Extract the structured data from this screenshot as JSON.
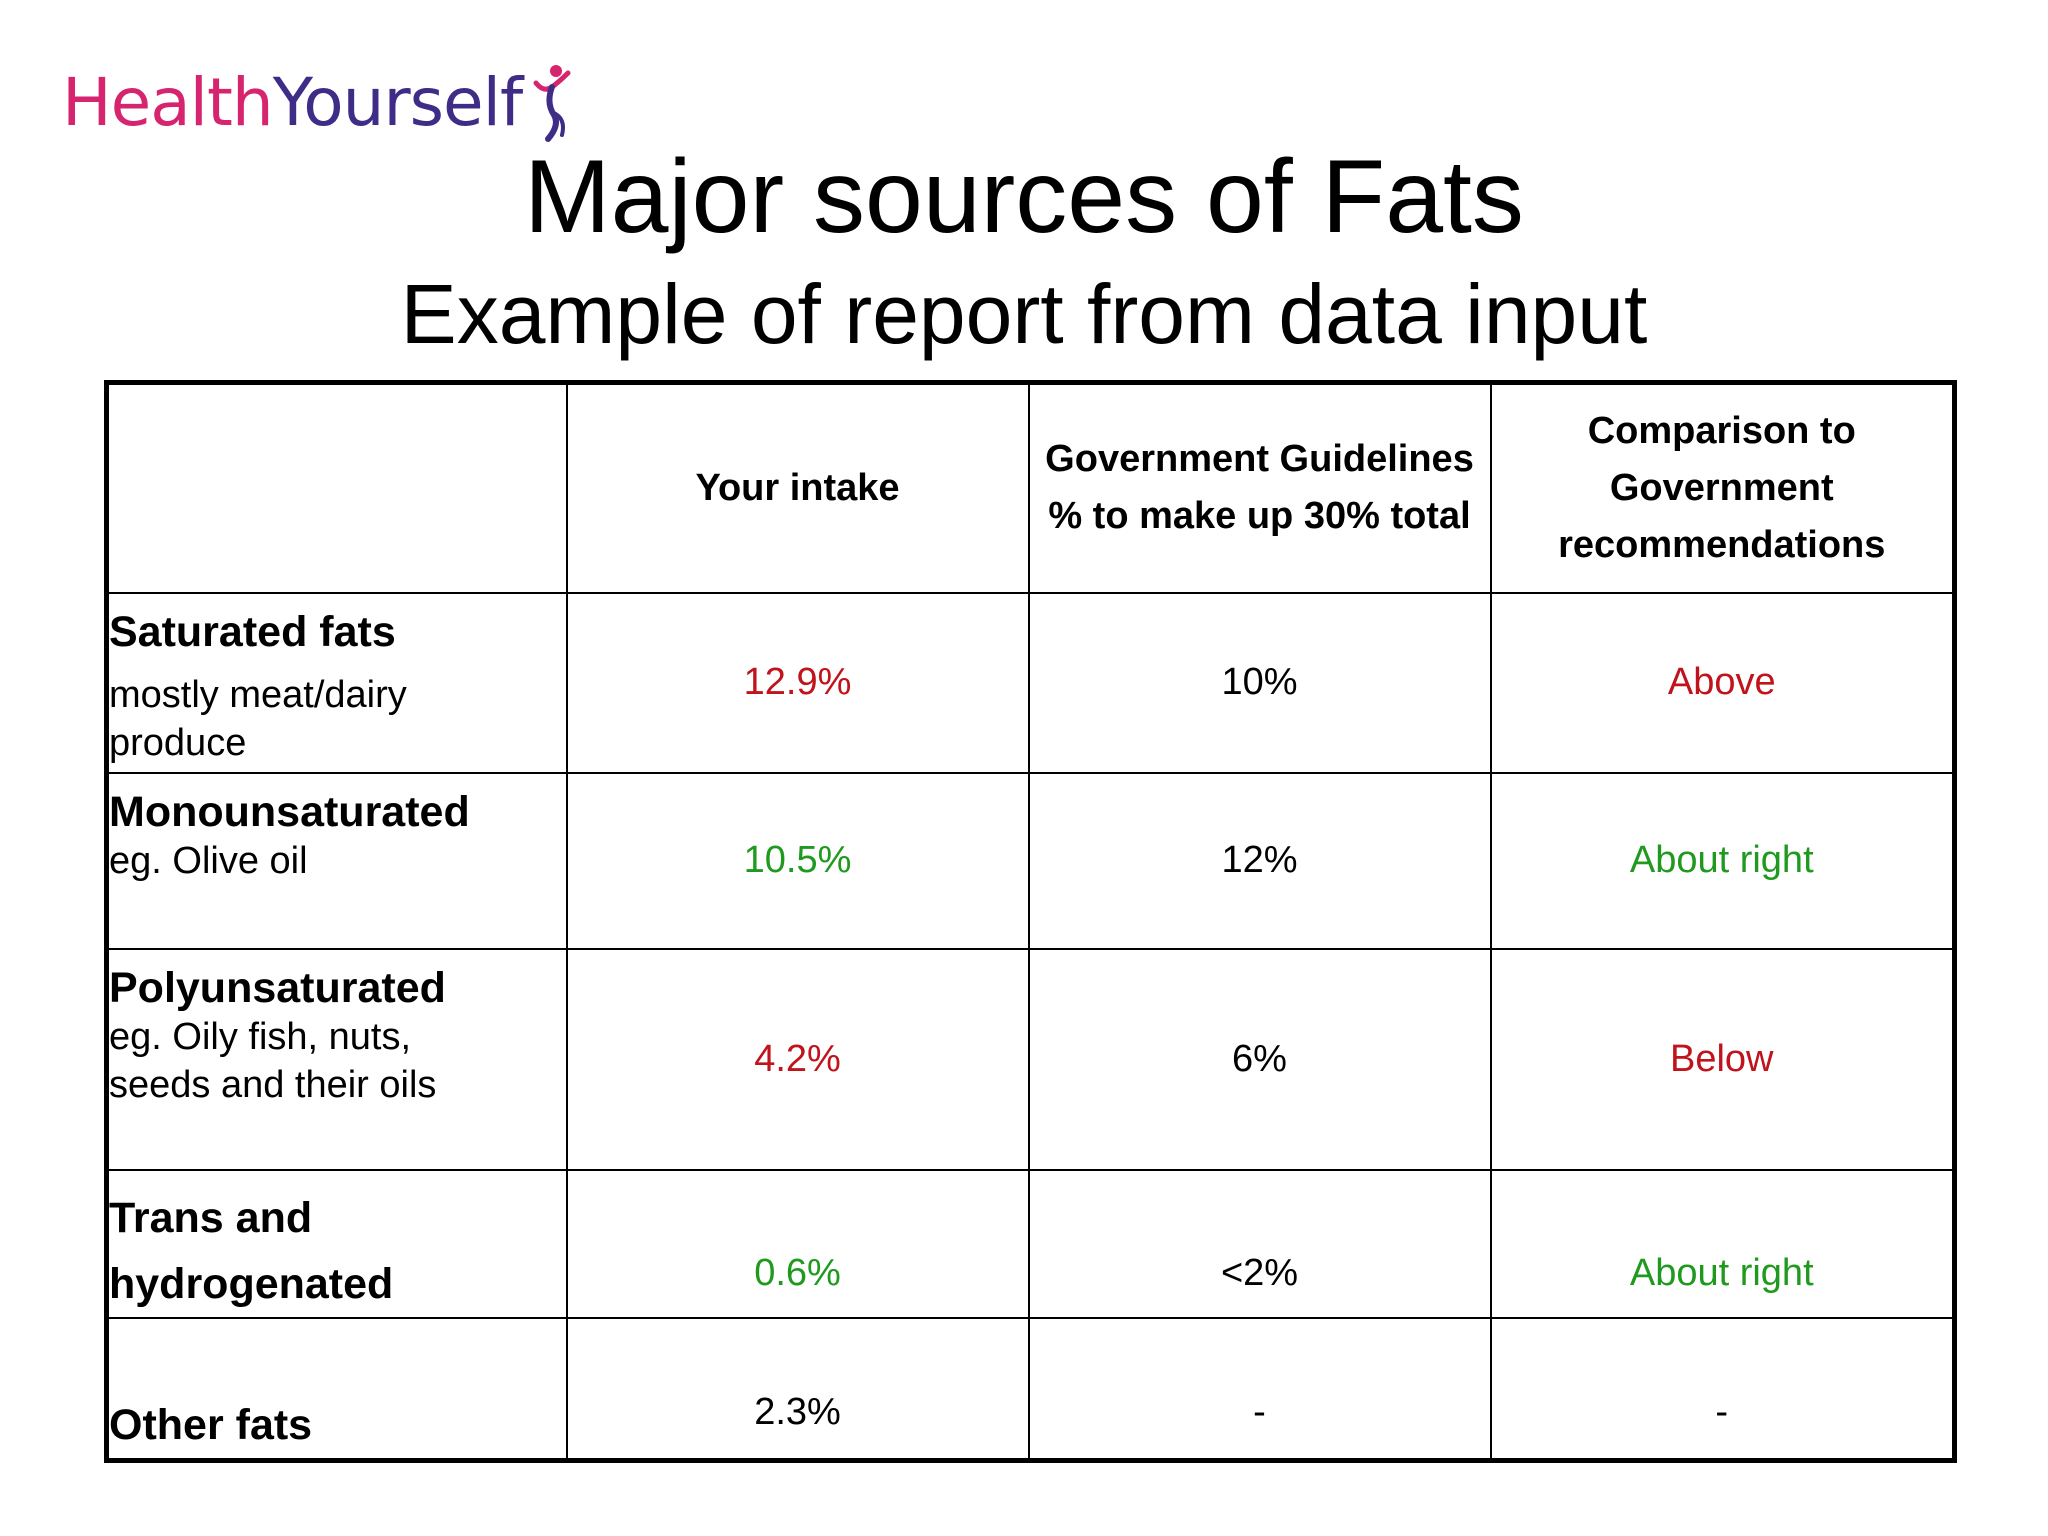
{
  "logo": {
    "part1": "Health",
    "part2": "Yourself",
    "icon": "person-figure-icon",
    "colors": {
      "health": "#d6246e",
      "yourself": "#3e2c86"
    }
  },
  "title": "Major sources of Fats",
  "subtitle": "Example of report from data input",
  "table": {
    "headers": [
      "",
      "Your intake",
      "Government Guidelines % to make up 30% total",
      "Comparison to Government recommendations"
    ],
    "rows": [
      {
        "name": "Saturated fats",
        "desc": "mostly meat/dairy produce",
        "intake": "12.9%",
        "guideline": "10%",
        "comparison": "Above",
        "status_color": "#c0131b"
      },
      {
        "name": "Monounsaturated",
        "desc": "eg. Olive oil",
        "intake": "10.5%",
        "guideline": "12%",
        "comparison": "About right",
        "status_color": "#1f9a1f"
      },
      {
        "name": "Polyunsaturated",
        "desc": "eg. Oily fish, nuts, seeds and their oils",
        "intake": "4.2%",
        "guideline": "6%",
        "comparison": "Below",
        "status_color": "#c0131b"
      },
      {
        "name": "Trans and hydrogenated",
        "desc": "",
        "intake": "0.6%",
        "guideline": "<2%",
        "comparison": "About right",
        "status_color": "#1f9a1f"
      },
      {
        "name": "Other fats",
        "desc": "",
        "intake": "2.3%",
        "guideline": "-",
        "comparison": "-",
        "status_color": "#000000"
      }
    ]
  }
}
